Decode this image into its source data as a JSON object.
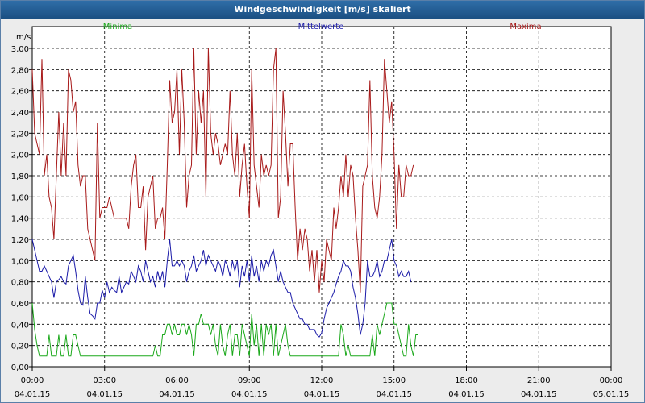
{
  "window": {
    "title": "Windgeschwindigkeit [m/s] skaliert"
  },
  "colors": {
    "minima": "#1aa81a",
    "mittel": "#1a1aa8",
    "maxima": "#a81a1a",
    "grid": "#000000"
  },
  "chart_data": {
    "type": "line",
    "title": "Windgeschwindigkeit [m/s] skaliert",
    "ylabel": "m/s",
    "xlabel": "",
    "ylim": [
      0,
      3.0
    ],
    "xlim": [
      0,
      24
    ],
    "y_ticks": [
      "0,00",
      "0,20",
      "0,40",
      "0,60",
      "0,80",
      "1,00",
      "1,20",
      "1,40",
      "1,60",
      "1,80",
      "2,00",
      "2,20",
      "2,40",
      "2,60",
      "2,80",
      "3,00"
    ],
    "x_ticks": [
      {
        "time": "00:00",
        "date": "04.01.15"
      },
      {
        "time": "03:00",
        "date": "04.01.15"
      },
      {
        "time": "06:00",
        "date": "04.01.15"
      },
      {
        "time": "09:00",
        "date": "04.01.15"
      },
      {
        "time": "12:00",
        "date": "04.01.15"
      },
      {
        "time": "15:00",
        "date": "04.01.15"
      },
      {
        "time": "18:00",
        "date": "04.01.15"
      },
      {
        "time": "21:00",
        "date": "04.01.15"
      },
      {
        "time": "00:00",
        "date": "05.01.15"
      }
    ],
    "legend": [
      "Minima",
      "Mittelwerte",
      "Maxima"
    ],
    "sample_interval_hours": 0.1,
    "series": [
      {
        "name": "Maxima",
        "values": [
          2.8,
          2.2,
          2.1,
          2.0,
          2.9,
          1.8,
          2.0,
          1.6,
          1.5,
          1.2,
          1.8,
          2.4,
          1.8,
          2.3,
          1.8,
          2.8,
          2.7,
          2.4,
          2.5,
          1.9,
          1.7,
          1.8,
          1.8,
          1.3,
          1.2,
          1.1,
          1.0,
          2.3,
          1.4,
          1.5,
          1.5,
          1.5,
          1.6,
          1.5,
          1.4,
          1.4,
          1.4,
          1.4,
          1.4,
          1.4,
          1.3,
          1.7,
          1.9,
          2.0,
          1.5,
          1.5,
          1.7,
          1.1,
          1.6,
          1.7,
          1.8,
          1.3,
          1.4,
          1.4,
          1.5,
          1.2,
          1.9,
          2.7,
          2.3,
          2.4,
          2.8,
          2.0,
          2.8,
          2.3,
          1.5,
          1.8,
          1.9,
          3.0,
          2.0,
          2.6,
          2.3,
          2.6,
          1.6,
          3.0,
          2.2,
          2.0,
          2.2,
          2.1,
          1.9,
          2.0,
          2.1,
          2.0,
          2.6,
          2.0,
          1.8,
          2.2,
          1.6,
          1.9,
          2.1,
          1.7,
          1.4,
          2.8,
          1.9,
          1.7,
          1.5,
          2.0,
          1.8,
          1.9,
          1.8,
          1.9,
          2.8,
          3.0,
          1.4,
          1.6,
          2.6,
          2.2,
          1.7,
          2.1,
          2.1,
          1.5,
          1.0,
          1.3,
          1.1,
          1.3,
          1.2,
          0.9,
          1.1,
          0.8,
          1.1,
          0.7,
          1.0,
          0.8,
          1.2,
          1.1,
          1.0,
          1.5,
          1.3,
          1.5,
          1.8,
          1.6,
          2.0,
          1.6,
          1.9,
          1.8,
          1.4,
          1.1,
          0.7,
          1.7,
          1.8,
          1.9,
          2.7,
          1.8,
          1.5,
          1.4,
          1.6,
          2.0,
          2.9,
          2.6,
          2.3,
          2.5,
          2.0,
          1.3,
          1.9,
          1.6,
          1.6,
          1.9,
          1.8,
          1.8,
          1.9
        ]
      },
      {
        "name": "Mittelwerte",
        "values": [
          1.2,
          1.1,
          1.0,
          0.9,
          0.9,
          0.95,
          0.9,
          0.85,
          0.8,
          0.65,
          0.8,
          0.82,
          0.85,
          0.8,
          0.78,
          0.95,
          1.0,
          1.05,
          0.9,
          0.72,
          0.6,
          0.58,
          0.85,
          0.65,
          0.5,
          0.48,
          0.45,
          0.6,
          0.6,
          0.72,
          0.65,
          0.8,
          0.7,
          0.75,
          0.72,
          0.7,
          0.85,
          0.7,
          0.75,
          0.8,
          0.78,
          0.9,
          0.85,
          0.8,
          0.95,
          0.9,
          0.8,
          1.0,
          0.9,
          0.8,
          0.85,
          0.75,
          0.9,
          0.8,
          0.9,
          0.75,
          1.0,
          1.2,
          0.95,
          0.95,
          1.0,
          0.95,
          1.0,
          0.95,
          0.8,
          0.9,
          0.95,
          1.05,
          0.9,
          0.95,
          1.0,
          1.1,
          0.95,
          1.05,
          1.0,
          0.95,
          0.9,
          1.0,
          0.95,
          0.85,
          1.0,
          0.95,
          0.85,
          1.0,
          0.9,
          1.0,
          0.75,
          0.95,
          0.85,
          1.0,
          0.8,
          1.05,
          0.85,
          0.95,
          0.8,
          1.0,
          0.9,
          1.0,
          0.95,
          1.05,
          1.1,
          0.95,
          0.8,
          0.9,
          0.8,
          0.75,
          0.7,
          0.7,
          0.6,
          0.55,
          0.5,
          0.45,
          0.45,
          0.4,
          0.4,
          0.35,
          0.35,
          0.35,
          0.3,
          0.28,
          0.32,
          0.45,
          0.55,
          0.6,
          0.65,
          0.7,
          0.78,
          0.85,
          0.9,
          1.0,
          0.95,
          0.95,
          0.9,
          0.75,
          0.65,
          0.5,
          0.3,
          0.4,
          0.6,
          1.0,
          0.85,
          0.85,
          0.9,
          1.0,
          0.85,
          0.9,
          1.0,
          1.0,
          1.1,
          1.2,
          1.0,
          0.95,
          0.85,
          0.9,
          0.85,
          0.85,
          0.9,
          0.8
        ]
      },
      {
        "name": "Minima",
        "values": [
          0.6,
          0.35,
          0.2,
          0.1,
          0.1,
          0.1,
          0.1,
          0.3,
          0.1,
          0.1,
          0.1,
          0.3,
          0.1,
          0.1,
          0.3,
          0.1,
          0.1,
          0.3,
          0.3,
          0.2,
          0.1,
          0.1,
          0.1,
          0.1,
          0.1,
          0.1,
          0.1,
          0.1,
          0.1,
          0.1,
          0.1,
          0.1,
          0.1,
          0.1,
          0.1,
          0.1,
          0.1,
          0.1,
          0.1,
          0.1,
          0.1,
          0.1,
          0.1,
          0.1,
          0.1,
          0.1,
          0.1,
          0.1,
          0.1,
          0.1,
          0.1,
          0.2,
          0.1,
          0.1,
          0.3,
          0.3,
          0.4,
          0.4,
          0.3,
          0.4,
          0.3,
          0.3,
          0.4,
          0.4,
          0.3,
          0.4,
          0.3,
          0.1,
          0.4,
          0.4,
          0.5,
          0.4,
          0.4,
          0.4,
          0.3,
          0.4,
          0.2,
          0.1,
          0.4,
          0.2,
          0.1,
          0.3,
          0.4,
          0.1,
          0.3,
          0.3,
          0.1,
          0.4,
          0.3,
          0.2,
          0.1,
          0.5,
          0.2,
          0.4,
          0.1,
          0.4,
          0.1,
          0.4,
          0.3,
          0.4,
          0.1,
          0.4,
          0.1,
          0.2,
          0.3,
          0.4,
          0.2,
          0.1,
          0.1,
          0.1,
          0.1,
          0.1,
          0.1,
          0.1,
          0.1,
          0.1,
          0.1,
          0.1,
          0.1,
          0.1,
          0.1,
          0.1,
          0.1,
          0.1,
          0.1,
          0.1,
          0.1,
          0.1,
          0.4,
          0.3,
          0.1,
          0.2,
          0.1,
          0.1,
          0.1,
          0.1,
          0.1,
          0.1,
          0.1,
          0.1,
          0.1,
          0.3,
          0.1,
          0.4,
          0.3,
          0.4,
          0.5,
          0.6,
          0.6,
          0.6,
          0.4,
          0.4,
          0.3,
          0.2,
          0.1,
          0.1,
          0.4,
          0.2,
          0.1,
          0.3,
          0.3
        ]
      }
    ]
  }
}
